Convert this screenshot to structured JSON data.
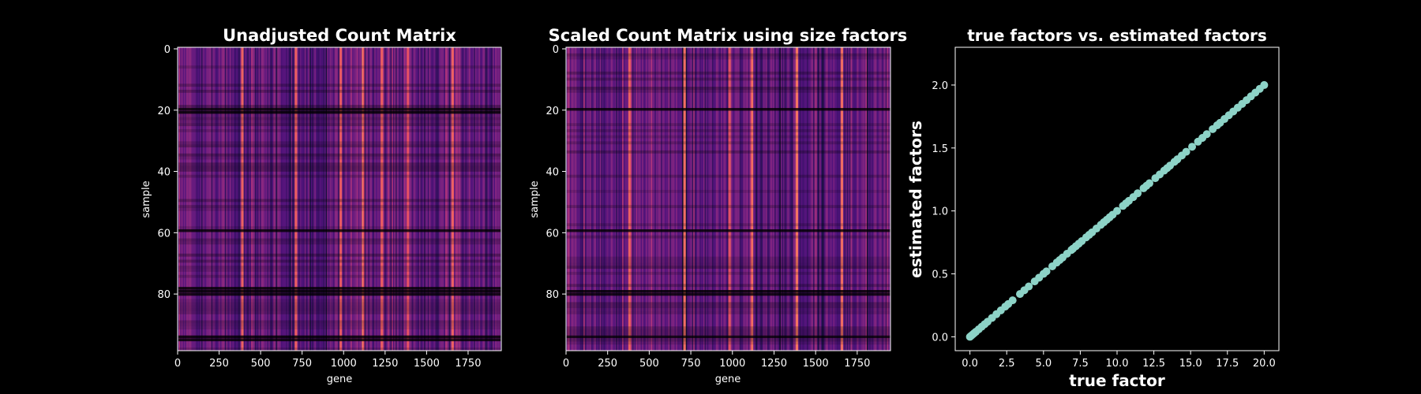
{
  "chart_data": [
    {
      "type": "heatmap",
      "title": "Unadjusted Count Matrix",
      "xlabel": "gene",
      "ylabel": "sample",
      "xlim": [
        0,
        1950
      ],
      "ylim": [
        99,
        0
      ],
      "xticks": [
        0,
        250,
        500,
        750,
        1000,
        1250,
        1500,
        1750
      ],
      "yticks": [
        0,
        20,
        40,
        60,
        80
      ],
      "n_genes": 1950,
      "n_samples": 100,
      "colormap": "magma",
      "low_count_sample_rows": [
        20,
        21,
        60,
        79,
        80,
        81,
        95,
        96
      ],
      "high_count_gene_columns": [
        390,
        710,
        980,
        1120,
        1230,
        1390,
        1660
      ]
    },
    {
      "type": "heatmap",
      "title": "Scaled Count Matrix using size factors",
      "xlabel": "gene",
      "ylabel": "sample",
      "xlim": [
        0,
        1950
      ],
      "ylim": [
        99,
        0
      ],
      "xticks": [
        0,
        250,
        500,
        750,
        1000,
        1250,
        1500,
        1750
      ],
      "yticks": [
        0,
        20,
        40,
        60,
        80
      ],
      "n_genes": 1950,
      "n_samples": 100,
      "colormap": "magma",
      "low_count_sample_rows": [
        20,
        60,
        80,
        81,
        95
      ],
      "high_count_gene_columns": [
        380,
        710,
        980,
        1120,
        1390,
        1660
      ]
    },
    {
      "type": "scatter",
      "title": "true factors vs. estimated factors",
      "xlabel": "true factor",
      "ylabel": "estimated factors",
      "xlim": [
        -1.0,
        21.0
      ],
      "ylim": [
        -0.11,
        2.3
      ],
      "xticks": [
        "0.0",
        "2.5",
        "5.0",
        "7.5",
        "10.0",
        "12.5",
        "15.0",
        "17.5",
        "20.0"
      ],
      "yticks": [
        "0.0",
        "0.5",
        "1.0",
        "1.5",
        "2.0"
      ],
      "marker_color": "#8dd3c7",
      "x": [
        0.0,
        0.1,
        0.2,
        0.3,
        0.4,
        0.6,
        0.8,
        1.0,
        1.2,
        1.5,
        1.8,
        2.1,
        2.4,
        2.6,
        2.9,
        3.4,
        3.7,
        4.0,
        4.4,
        4.7,
        5.0,
        5.2,
        5.6,
        5.9,
        6.1,
        6.3,
        6.6,
        6.9,
        7.0,
        7.2,
        7.4,
        7.6,
        7.9,
        8.1,
        8.3,
        8.6,
        8.9,
        9.1,
        9.3,
        9.5,
        9.7,
        10.0,
        10.4,
        10.6,
        10.8,
        11.1,
        11.4,
        11.8,
        12.0,
        12.2,
        12.6,
        12.9,
        13.2,
        13.4,
        13.6,
        13.9,
        14.1,
        14.4,
        14.7,
        15.1,
        15.5,
        15.8,
        16.1,
        16.5,
        16.8,
        17.0,
        17.3,
        17.6,
        17.9,
        18.2,
        18.5,
        18.8,
        19.1,
        19.4,
        19.7,
        20.0
      ],
      "y": [
        0.0,
        0.01,
        0.02,
        0.03,
        0.04,
        0.06,
        0.08,
        0.1,
        0.12,
        0.15,
        0.18,
        0.21,
        0.24,
        0.26,
        0.29,
        0.34,
        0.37,
        0.4,
        0.44,
        0.47,
        0.5,
        0.52,
        0.56,
        0.59,
        0.61,
        0.63,
        0.66,
        0.69,
        0.7,
        0.72,
        0.74,
        0.76,
        0.79,
        0.81,
        0.83,
        0.86,
        0.89,
        0.91,
        0.93,
        0.95,
        0.97,
        1.0,
        1.04,
        1.06,
        1.08,
        1.11,
        1.14,
        1.18,
        1.2,
        1.22,
        1.26,
        1.29,
        1.32,
        1.34,
        1.36,
        1.39,
        1.41,
        1.44,
        1.47,
        1.51,
        1.55,
        1.58,
        1.61,
        1.65,
        1.68,
        1.7,
        1.73,
        1.76,
        1.79,
        1.82,
        1.85,
        1.88,
        1.91,
        1.94,
        1.97,
        2.0
      ],
      "grid": false
    }
  ]
}
